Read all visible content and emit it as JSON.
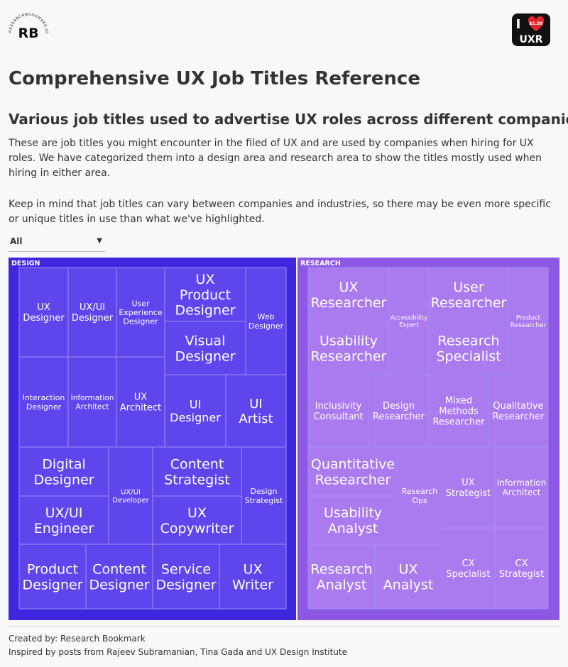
{
  "logos": {
    "left": {
      "mark": "RB",
      "ring_text": "RESEARCHBOOKMARK.IO"
    },
    "right": {
      "line1": "I",
      "line2": "UXR",
      "price": "$1.99"
    }
  },
  "header": {
    "title": "Comprehensive UX Job Titles Reference",
    "subtitle": "Various job titles used to advertise UX roles across different companies",
    "paragraph1": "These are job titles you might encounter in the filed of UX and are used by companies when hiring for UX roles. We have categorized them into a design area and research area to show the titles mostly used when hiring in either area.",
    "paragraph2": "Keep in mind that job titles can vary between companies and industries, so there may be even more specific or unique titles in use than what we've highlighted."
  },
  "filter": {
    "selected": "All"
  },
  "colors": {
    "design_frame": "#3f27e0",
    "design_tile": "#5f46ec",
    "research_frame": "#8d58e4",
    "research_tile": "#aa7bee",
    "tile_border": "#9d8cf5",
    "text": "#ffffff"
  },
  "chart_data": {
    "type": "treemap",
    "groups": [
      {
        "name": "DESIGN",
        "titles": [
          "UX Designer",
          "UX/UI Designer",
          "User Experience Designer",
          "UX Product Designer",
          "Visual Designer",
          "Web Designer",
          "Interaction Designer",
          "Information Architect",
          "UX Architect",
          "UI Designer",
          "UI Artist",
          "Digital Designer",
          "UX/UI Engineer",
          "UX/UI Developer",
          "Content Strategist",
          "UX Copywriter",
          "Design Strategist",
          "Product Designer",
          "Content Designer",
          "Service Designer",
          "UX Writer"
        ]
      },
      {
        "name": "RESEARCH",
        "titles": [
          "UX Researcher",
          "Usability Researcher",
          "Accessibility Expert",
          "User Researcher",
          "Research Specialist",
          "Product Researcher",
          "Inclusivity Consultant",
          "Design Researcher",
          "Mixed Methods Researcher",
          "Qualitative Researcher",
          "Quantitative Researcher",
          "Usability Analyst",
          "Research Ops",
          "UX Strategist",
          "Information Architect",
          "CX Specialist",
          "CX Strategist",
          "Research Analyst",
          "UX Analyst"
        ]
      }
    ]
  },
  "footer": {
    "created": "Created by: Research Bookmark",
    "inspired": "Inspired by posts from Rajeev Subramanian, Tina Gada and UX Design Institute"
  }
}
